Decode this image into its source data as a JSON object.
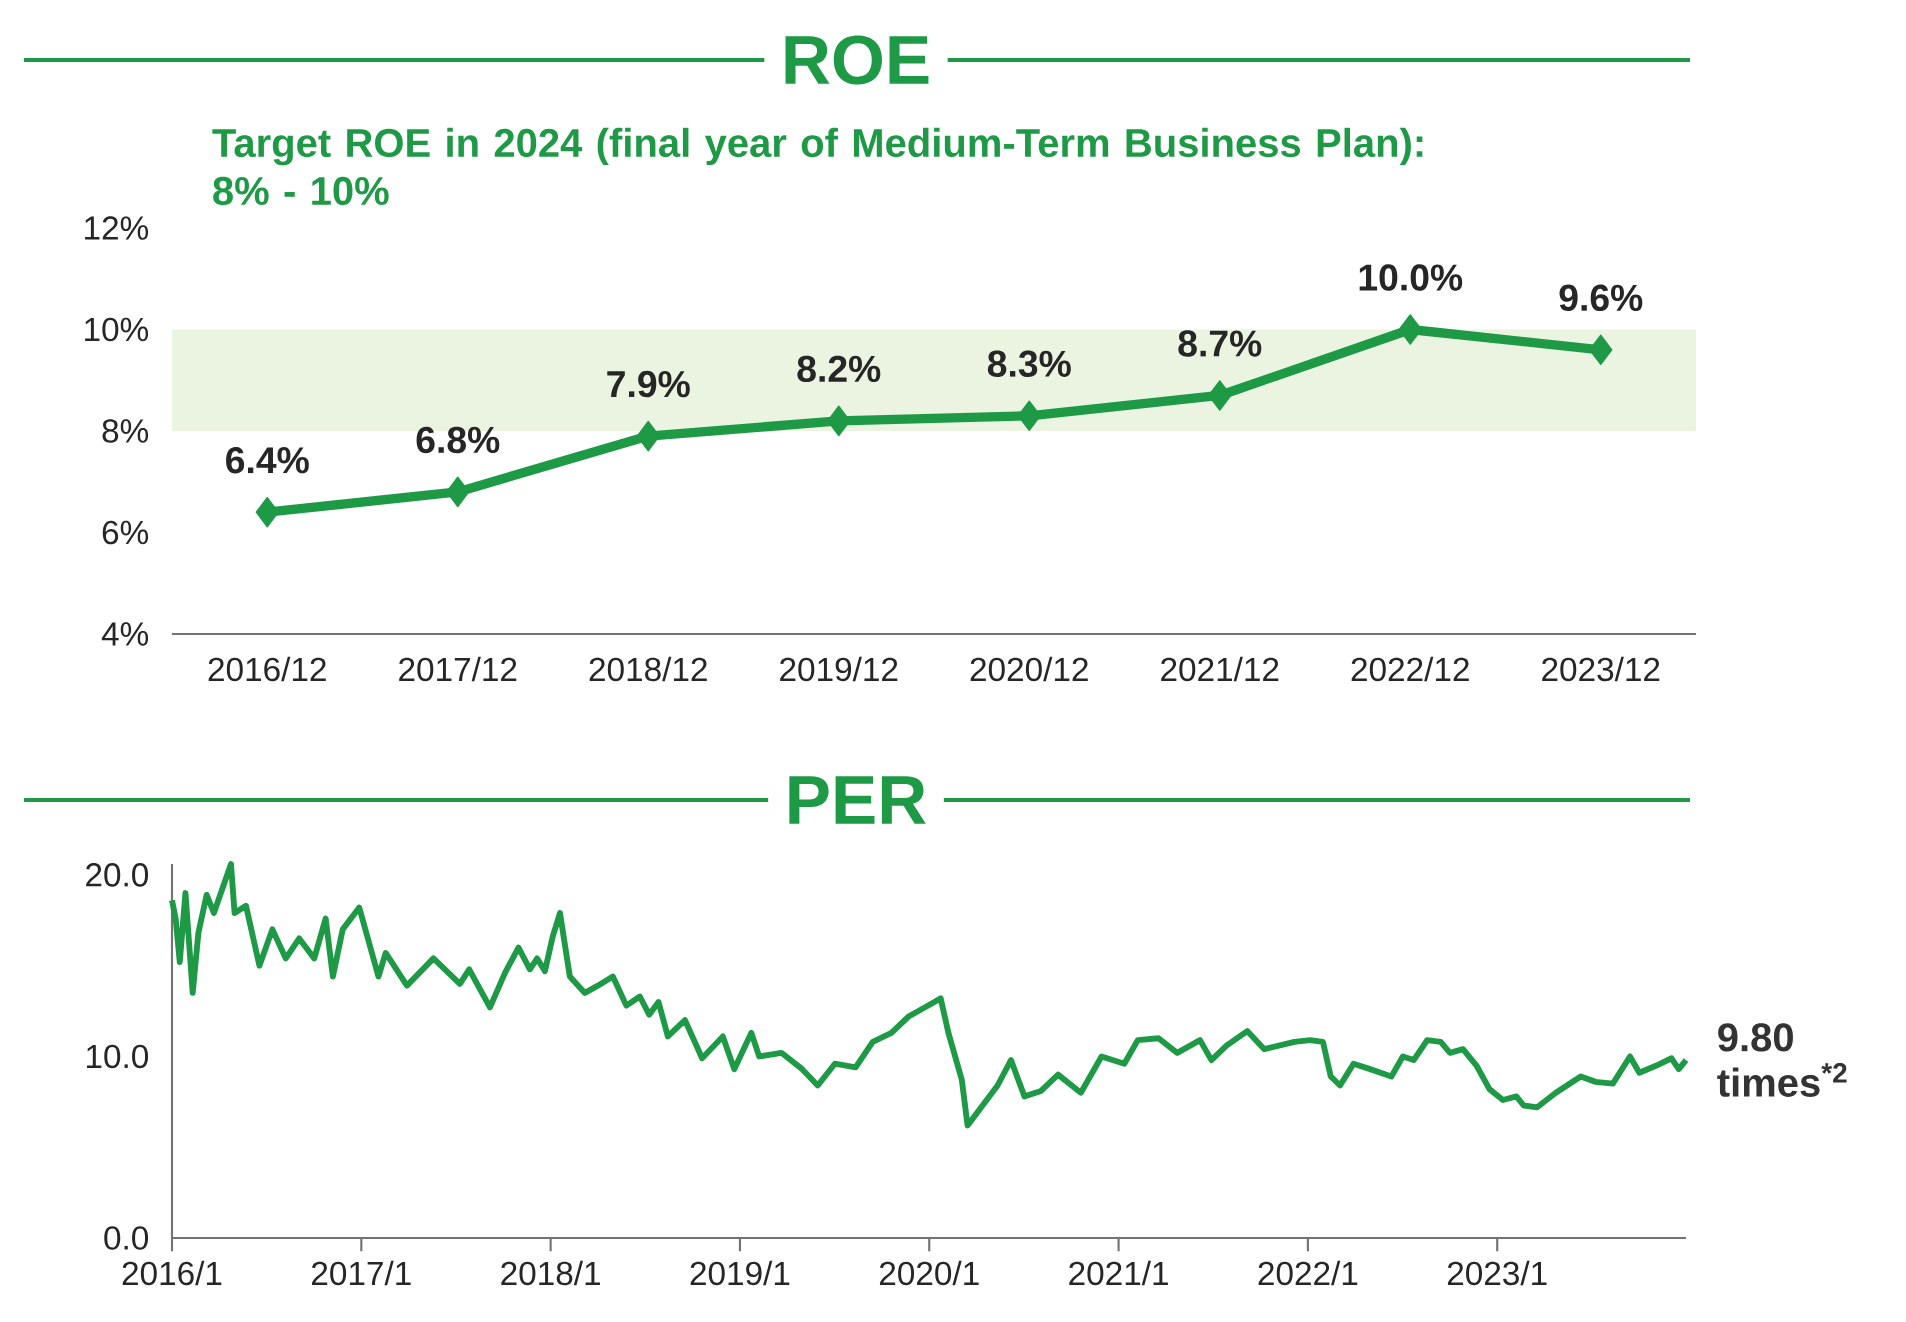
{
  "chart_data": [
    {
      "type": "line",
      "title": "ROE",
      "categories": [
        "2016/12",
        "2017/12",
        "2018/12",
        "2019/12",
        "2020/12",
        "2021/12",
        "2022/12",
        "2023/12"
      ],
      "values": [
        6.4,
        6.8,
        7.9,
        8.2,
        8.3,
        8.7,
        10.0,
        9.6
      ],
      "value_labels": [
        "6.4%",
        "6.8%",
        "7.9%",
        "8.2%",
        "8.3%",
        "8.7%",
        "10.0%",
        "9.6%"
      ],
      "color": "#1e9a46",
      "marker": "diamond",
      "ylim": [
        4,
        12
      ],
      "yticks": [
        {
          "value": 4,
          "label": "4%"
        },
        {
          "value": 6,
          "label": "6%"
        },
        {
          "value": 8,
          "label": "8%"
        },
        {
          "value": 10,
          "label": "10%"
        },
        {
          "value": 12,
          "label": "12%"
        }
      ],
      "bands": [
        {
          "axis": "y",
          "from": 8,
          "to": 10,
          "color": "#eaf4e0"
        }
      ],
      "annotations": [
        "Target ROE in 2024 (final year of Medium-Term Business Plan): 8% - 10%"
      ]
    },
    {
      "type": "line",
      "title": "PER",
      "color": "#1e9a46",
      "marker": "none",
      "x": [
        "2016-01-01",
        "2016-01-08",
        "2016-01-16",
        "2016-01-27",
        "2016-02-10",
        "2016-02-21",
        "2016-03-08",
        "2016-03-22",
        "2016-04-24",
        "2016-05-01",
        "2016-05-23",
        "2016-06-18",
        "2016-07-13",
        "2016-08-08",
        "2016-09-03",
        "2016-10-02",
        "2016-10-24",
        "2016-11-07",
        "2016-11-26",
        "2016-12-28",
        "2017-02-03",
        "2017-02-17",
        "2017-03-30",
        "2017-05-20",
        "2017-07-10",
        "2017-07-28",
        "2017-09-06",
        "2017-10-05",
        "2017-10-31",
        "2017-11-22",
        "2017-12-06",
        "2017-12-21",
        "2018-01-05",
        "2018-01-19",
        "2018-02-07",
        "2018-03-08",
        "2018-04-02",
        "2018-05-01",
        "2018-05-27",
        "2018-06-22",
        "2018-07-10",
        "2018-07-28",
        "2018-08-15",
        "2018-09-17",
        "2018-10-20",
        "2018-11-29",
        "2018-12-21",
        "2019-01-23",
        "2019-02-07",
        "2019-03-22",
        "2019-05-01",
        "2019-05-31",
        "2019-07-03",
        "2019-08-12",
        "2019-09-14",
        "2019-10-20",
        "2019-11-22",
        "2020-01-05",
        "2020-01-23",
        "2020-02-07",
        "2020-03-04",
        "2020-03-15",
        "2020-04-13",
        "2020-05-12",
        "2020-06-07",
        "2020-07-03",
        "2020-08-04",
        "2020-09-06",
        "2020-10-20",
        "2020-11-29",
        "2021-01-12",
        "2021-02-07",
        "2021-03-19",
        "2021-04-24",
        "2021-06-07",
        "2021-06-29",
        "2021-07-28",
        "2021-09-06",
        "2021-10-09",
        "2021-12-06",
        "2022-01-05",
        "2022-01-30",
        "2022-02-14",
        "2022-03-04",
        "2022-03-30",
        "2022-05-01",
        "2022-06-11",
        "2022-07-03",
        "2022-07-24",
        "2022-08-19",
        "2022-09-14",
        "2022-10-02",
        "2022-10-27",
        "2022-11-22",
        "2022-12-17",
        "2023-01-12",
        "2023-02-07",
        "2023-02-21",
        "2023-03-19",
        "2023-04-24",
        "2023-06-11",
        "2023-07-10",
        "2023-08-12",
        "2023-09-14",
        "2023-10-02",
        "2023-11-04",
        "2023-12-03",
        "2023-12-17",
        "2023-12-31"
      ],
      "values": [
        18.6,
        17.6,
        15.2,
        19.0,
        13.5,
        16.8,
        18.9,
        17.9,
        20.6,
        17.9,
        18.3,
        15.0,
        17.0,
        15.4,
        16.5,
        15.4,
        17.6,
        14.4,
        17.0,
        18.2,
        14.4,
        15.7,
        13.9,
        15.4,
        14.0,
        14.8,
        12.7,
        14.6,
        16.0,
        14.8,
        15.4,
        14.7,
        16.6,
        17.9,
        14.4,
        13.5,
        13.9,
        14.4,
        12.8,
        13.3,
        12.3,
        13.0,
        11.1,
        12.0,
        9.9,
        11.1,
        9.3,
        11.3,
        10.0,
        10.2,
        9.3,
        8.4,
        9.6,
        9.4,
        10.8,
        11.3,
        12.2,
        12.9,
        13.2,
        11.3,
        8.7,
        6.2,
        7.3,
        8.4,
        9.8,
        7.8,
        8.1,
        9.0,
        8.0,
        10.0,
        9.6,
        10.9,
        11.0,
        10.2,
        10.9,
        9.8,
        10.6,
        11.4,
        10.4,
        10.8,
        10.9,
        10.8,
        8.9,
        8.4,
        9.6,
        9.3,
        8.9,
        10.0,
        9.8,
        10.9,
        10.8,
        10.2,
        10.4,
        9.5,
        8.2,
        7.6,
        7.8,
        7.3,
        7.2,
        8.0,
        8.9,
        8.6,
        8.5,
        10.0,
        9.1,
        9.5,
        9.9,
        9.3,
        9.8
      ],
      "xlim": [
        "2016-01-01",
        "2023-12-31"
      ],
      "xticks": [
        {
          "value": "2016-01-01",
          "label": "2016/1"
        },
        {
          "value": "2017-01-01",
          "label": "2017/1"
        },
        {
          "value": "2018-01-01",
          "label": "2018/1"
        },
        {
          "value": "2019-01-01",
          "label": "2019/1"
        },
        {
          "value": "2020-01-01",
          "label": "2020/1"
        },
        {
          "value": "2021-01-01",
          "label": "2021/1"
        },
        {
          "value": "2022-01-01",
          "label": "2022/1"
        },
        {
          "value": "2023-01-01",
          "label": "2023/1"
        }
      ],
      "ylim": [
        0,
        20.6
      ],
      "yticks": [
        {
          "value": 0,
          "label": "0.0"
        },
        {
          "value": 10,
          "label": "10.0"
        },
        {
          "value": 20,
          "label": "20.0"
        }
      ],
      "annotations": [
        {
          "text": "9.80 times$^{*2}$",
          "x": "2023-12-31",
          "y": 9.8
        }
      ]
    }
  ]
}
